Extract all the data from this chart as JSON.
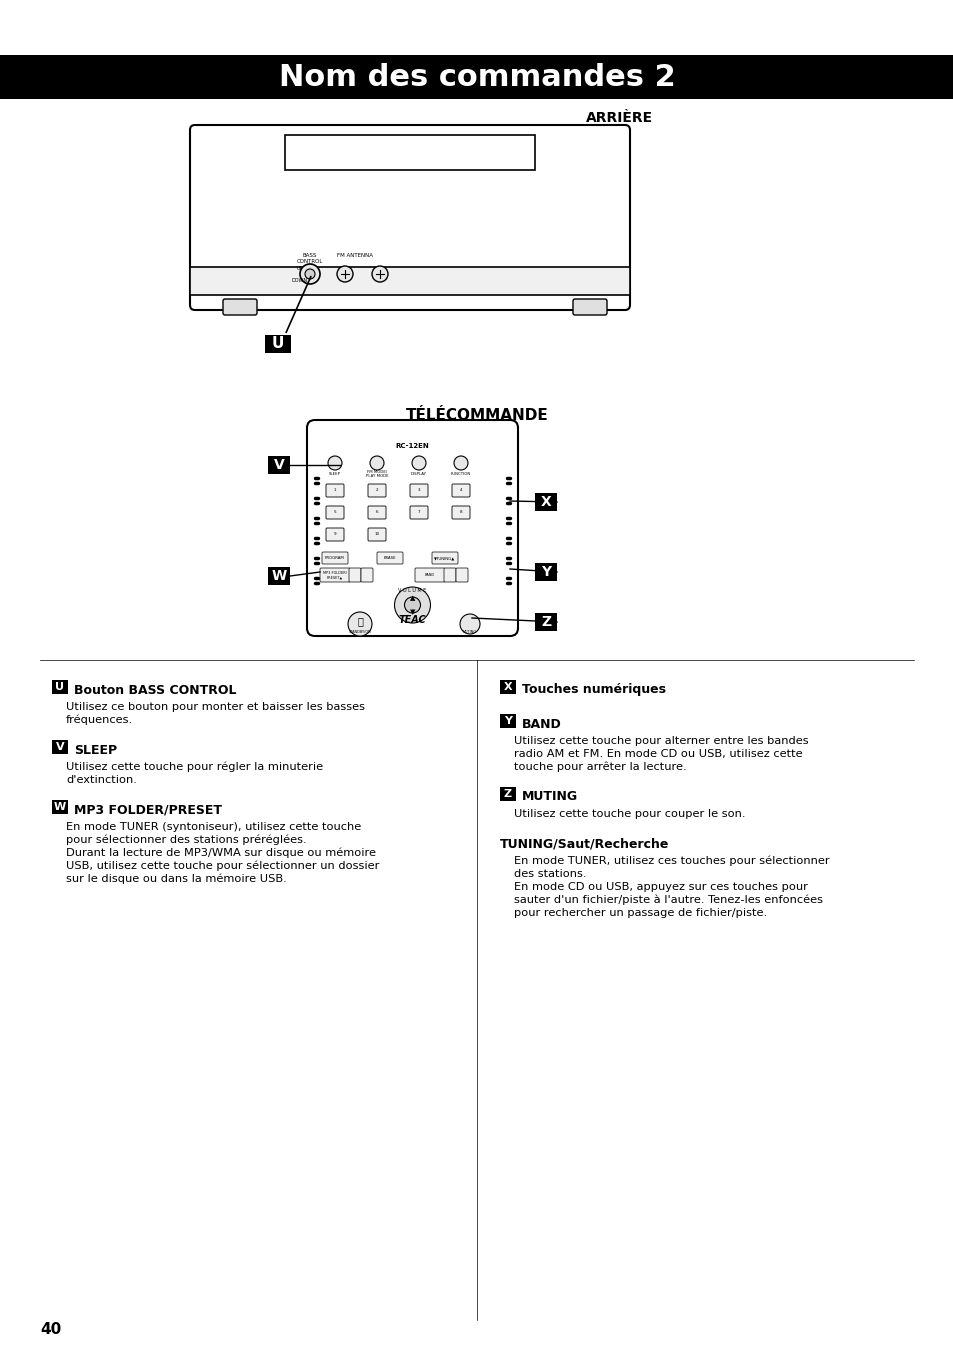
{
  "title": "Nom des commandes 2",
  "title_bg": "#000000",
  "title_color": "#ffffff",
  "title_fontsize": 22,
  "background_color": "#ffffff",
  "page_number": "40",
  "arriere_label": "ARRIÈRE",
  "telecommande_label": "TÉLÉCOMMANDE",
  "label_U": "U",
  "label_V": "V",
  "label_W": "W",
  "label_X": "X",
  "label_Y": "Y",
  "label_Z": "Z",
  "sections": [
    {
      "label": "U",
      "title": "Bouton BASS CONTROL",
      "body": "Utilisez ce bouton pour monter et baisser les basses\nfréquences."
    },
    {
      "label": "V",
      "title": "SLEEP",
      "body": "Utilisez cette touche pour régler la minuterie\nd'extinction."
    },
    {
      "label": "W",
      "title": "MP3 FOLDER/PRESET",
      "body": "En mode TUNER (syntoniseur), utilisez cette touche\npour sélectionner des stations préréglées.\nDurant la lecture de MP3/WMA sur disque ou mémoire\nUSB, utilisez cette touche pour sélectionner un dossier\nsur le disque ou dans la mémoire USB."
    },
    {
      "label": "X",
      "title": "Touches numériques",
      "body": ""
    },
    {
      "label": "Y",
      "title": "BAND",
      "body": "Utilisez cette touche pour alterner entre les bandes\nradio AM et FM. En mode CD ou USB, utilisez cette\ntouche pour arrêter la lecture."
    },
    {
      "label": "Z",
      "title": "MUTING",
      "body": "Utilisez cette touche pour couper le son."
    },
    {
      "label": "",
      "title": "TUNING/Saut/Recherche",
      "body": "En mode TUNER, utilisez ces touches pour sélectionner\ndes stations.\nEn mode CD ou USB, appuyez sur ces touches pour\nsauter d'un fichier/piste à l'autre. Tenez-les enfoncées\npour rechercher un passage de fichier/piste."
    }
  ]
}
